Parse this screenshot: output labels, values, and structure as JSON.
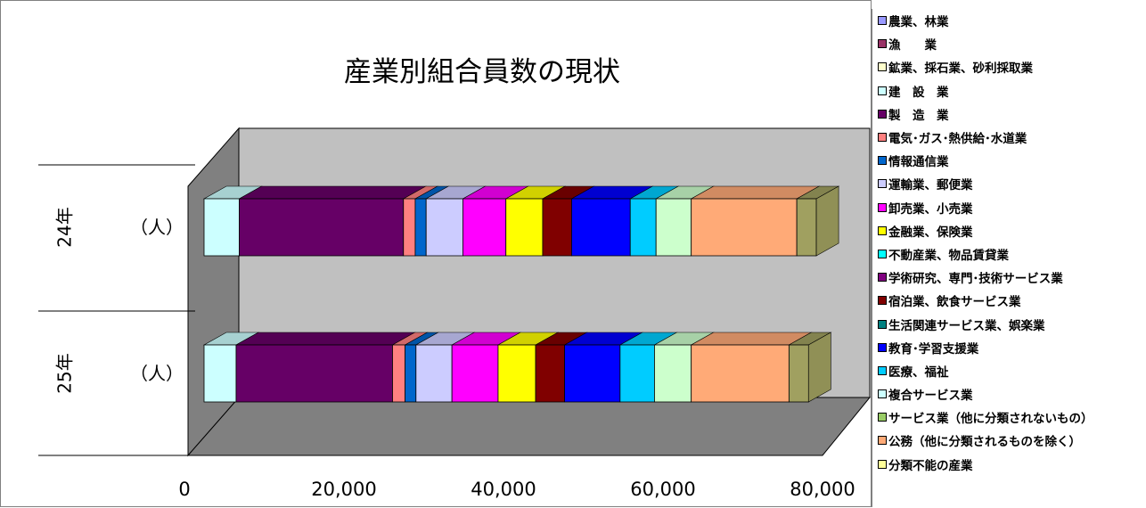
{
  "chart_data": {
    "type": "bar",
    "orientation": "horizontal",
    "stacked": true,
    "three_d": true,
    "title": "産業別組合員数の現状",
    "categories": [
      "24年",
      "25年"
    ],
    "category_sublabel": "（人）",
    "xlim": [
      0,
      80000
    ],
    "xticks": [
      "0",
      "20,000",
      "40,000",
      "60,000",
      "80,000"
    ],
    "grid": false,
    "legend_position": "right",
    "series": [
      {
        "name": "農業、林業",
        "color": "#CCFFFF",
        "values": [
          4500,
          4100
        ]
      },
      {
        "name": "漁　　業",
        "color": "#660066",
        "values": [
          21000,
          20000
        ]
      },
      {
        "name": "鉱業、採石業、砂利採取業",
        "color": "#FF8080",
        "values": [
          1500,
          1600
        ]
      },
      {
        "name": "建　設　業",
        "color": "#0066CC",
        "values": [
          1400,
          1400
        ]
      },
      {
        "name": "製　造　業",
        "color": "#CCCCFF",
        "values": [
          4700,
          4600
        ]
      },
      {
        "name": "電気･ガス･熱供給･水道業",
        "color": "#FF00FF",
        "values": [
          5500,
          5900
        ]
      },
      {
        "name": "情報通信業",
        "color": "#FFFF00",
        "values": [
          4700,
          4800
        ]
      },
      {
        "name": "運輸業、郵便業",
        "color": "#800000",
        "values": [
          3700,
          3700
        ]
      },
      {
        "name": "卸売業、小売業",
        "color": "#0000FF",
        "values": [
          7500,
          7100
        ]
      },
      {
        "name": "金融業、保険業",
        "color": "#00CCFF",
        "values": [
          3300,
          4400
        ]
      },
      {
        "name": "不動産業、物品賃貸業",
        "color": "#CCFFCC",
        "values": [
          4500,
          4700
        ]
      },
      {
        "name": "学術研究、専門･技術サービス業",
        "color": "#FFAA77",
        "values": [
          13500,
          12500
        ]
      },
      {
        "name": "宿泊業、飲食サービス業",
        "color": "#999966",
        "values": [
          0,
          0
        ]
      },
      {
        "name": "生活関連サービス業、娯楽業",
        "color": "#008080",
        "values": [
          0,
          0
        ]
      },
      {
        "name": "教育･学習支援業",
        "color": "#0000CC",
        "values": [
          0,
          0
        ]
      },
      {
        "name": "医療、福祉",
        "color": "#00CCFF",
        "values": [
          0,
          0
        ]
      },
      {
        "name": "複合サービス業",
        "color": "#FFFFFF",
        "values": [
          0,
          0
        ]
      },
      {
        "name": "サービス業（他に分類されないもの）",
        "color": "#99CC66",
        "values": [
          0,
          0
        ]
      },
      {
        "name": "公務（他に分類されるものを除く）",
        "color": "#FFAA77",
        "values": [
          0,
          0
        ]
      },
      {
        "name": "分類不能の産業",
        "color": "#FFFF99",
        "values": [
          0,
          0
        ]
      }
    ],
    "end_cap": {
      "color": "#A0A060",
      "values": [
        2500,
        2500
      ]
    }
  },
  "legend": {
    "items": [
      {
        "label": "農業、林業",
        "swatch": "#9999FF"
      },
      {
        "label": "漁　　業",
        "swatch": "#993366"
      },
      {
        "label": "鉱業、採石業、砂利採取業",
        "swatch": "#FFFFCC"
      },
      {
        "label": "建　設　業",
        "swatch": "#CCFFFF"
      },
      {
        "label": "製　造　業",
        "swatch": "#660066"
      },
      {
        "label": "電気･ガス･熱供給･水道業",
        "swatch": "#FF8080"
      },
      {
        "label": "情報通信業",
        "swatch": "#0066CC"
      },
      {
        "label": "運輸業、郵便業",
        "swatch": "#CCCCFF"
      },
      {
        "label": "卸売業、小売業",
        "swatch": "#FF00FF"
      },
      {
        "label": "金融業、保険業",
        "swatch": "#FFFF00"
      },
      {
        "label": "不動産業、物品賃貸業",
        "swatch": "#00FFFF"
      },
      {
        "label": "学術研究、専門･技術サービス業",
        "swatch": "#800080"
      },
      {
        "label": "宿泊業、飲食サービス業",
        "swatch": "#800000"
      },
      {
        "label": "生活関連サービス業、娯楽業",
        "swatch": "#008080"
      },
      {
        "label": "教育･学習支援業",
        "swatch": "#0000FF"
      },
      {
        "label": "医療、福祉",
        "swatch": "#00CCFF"
      },
      {
        "label": "複合サービス業",
        "swatch": "#CCFFFF"
      },
      {
        "label": "サービス業（他に分類されないもの）",
        "swatch": "#99CC66"
      },
      {
        "label": "公務（他に分類されるものを除く）",
        "swatch": "#FFAA77"
      },
      {
        "label": "分類不能の産業",
        "swatch": "#FFFF99"
      }
    ]
  }
}
